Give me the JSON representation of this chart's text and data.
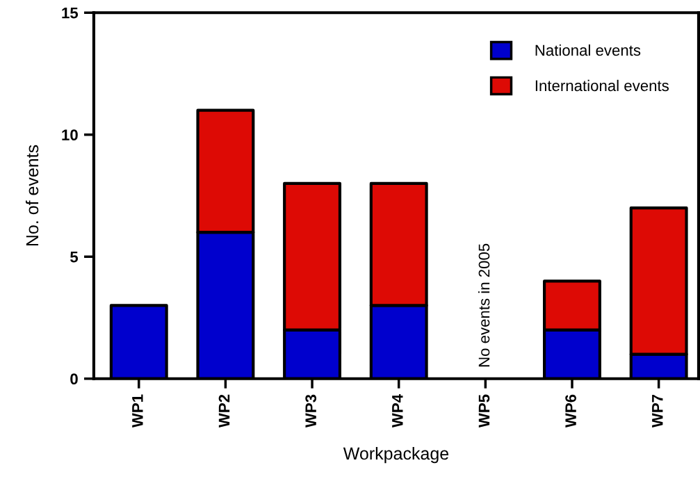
{
  "chart_data": {
    "type": "bar",
    "stacked": true,
    "xlabel": "Workpackage",
    "ylabel": "No. of events",
    "categories": [
      "WP1",
      "WP2",
      "WP3",
      "WP4",
      "WP5",
      "WP6",
      "WP7"
    ],
    "series": [
      {
        "name": "National events",
        "color": "#0000cd",
        "values": [
          3,
          6,
          2,
          3,
          0,
          2,
          1
        ]
      },
      {
        "name": "International events",
        "color": "#dd0a05",
        "values": [
          0,
          5,
          6,
          5,
          0,
          2,
          6
        ]
      }
    ],
    "ylim": [
      0,
      15
    ],
    "yticks": [
      0,
      5,
      10,
      15
    ],
    "grid": false,
    "legend": "top right",
    "annotations": [
      "No events in 2005"
    ]
  }
}
